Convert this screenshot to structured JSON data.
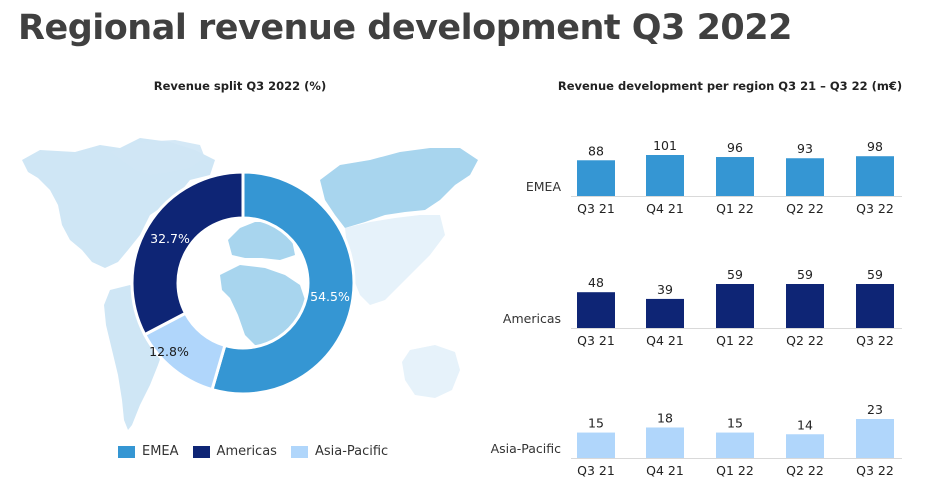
{
  "page": {
    "title": "Regional revenue development Q3 2022"
  },
  "colors": {
    "EMEA": "#3596d3",
    "Americas": "#0e2575",
    "Asia-Pacific": "#b0d6fb",
    "map_light": "#cfe6f5",
    "map_mid": "#a8d5ee",
    "map_pale": "#e6f2fa",
    "axis": "#d9d9d9"
  },
  "chart_data": [
    {
      "type": "pie",
      "variant": "donut",
      "title": "Revenue split Q3 2022 (%)",
      "labels": [
        "EMEA",
        "Americas",
        "Asia-Pacific"
      ],
      "values": [
        54.5,
        32.7,
        12.8
      ],
      "data_labels": [
        "54.5%",
        "32.7%",
        "12.8%"
      ],
      "legend": {
        "placement": "bottom",
        "entries": [
          "EMEA",
          "Americas",
          "Asia-Pacific"
        ]
      },
      "background": "world map"
    },
    {
      "type": "bar",
      "title": "Revenue development per region Q3 21 – Q3 22 (m€)",
      "categories": [
        "Q3 21",
        "Q4 21",
        "Q1 22",
        "Q2 22",
        "Q3 22"
      ],
      "series": [
        {
          "name": "EMEA",
          "values": [
            88,
            101,
            96,
            93,
            98
          ]
        },
        {
          "name": "Americas",
          "values": [
            48,
            39,
            59,
            59,
            59
          ]
        },
        {
          "name": "Asia-Pacific",
          "values": [
            15,
            18,
            15,
            14,
            23
          ]
        }
      ],
      "layout": "small multiples, one row per region",
      "xlabel": "",
      "ylabel": "",
      "grid": false
    }
  ]
}
